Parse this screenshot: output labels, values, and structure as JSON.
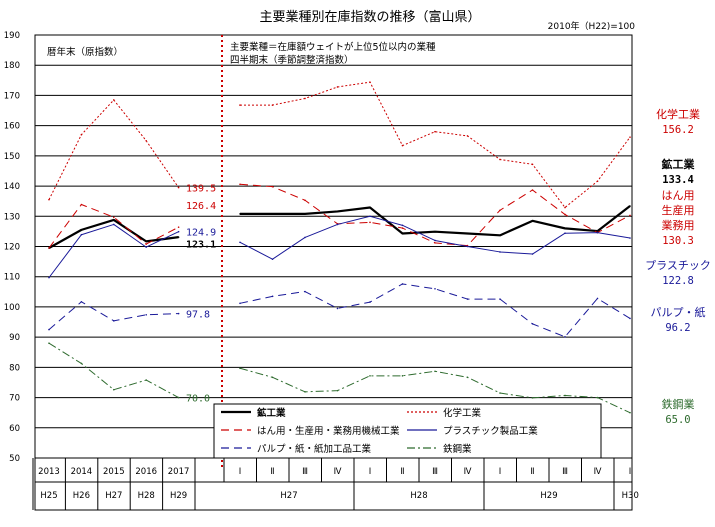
{
  "chart_data": {
    "type": "line",
    "title": "主要業種別在庫指数の推移（富山県）",
    "base_note": "2010年（H22)=100",
    "note_left": "暦年末（原指数）",
    "note_right_1": "主要業種＝在庫額ウェイトが上位5位以内の業種",
    "note_right_2": "四半期末（季節調整済指数）",
    "ylim": [
      50,
      190
    ],
    "yticks": [
      50,
      60,
      70,
      80,
      90,
      100,
      110,
      120,
      130,
      140,
      150,
      160,
      170,
      180,
      190
    ],
    "annual_x": [
      "2013",
      "2014",
      "2015",
      "2016",
      "2017"
    ],
    "annual_era": [
      "H25",
      "H26",
      "H27",
      "H28",
      "H29"
    ],
    "quarter_x": [
      "Ⅰ",
      "Ⅱ",
      "Ⅲ",
      "Ⅳ",
      "Ⅰ",
      "Ⅱ",
      "Ⅲ",
      "Ⅳ",
      "Ⅰ",
      "Ⅱ",
      "Ⅲ",
      "Ⅳ",
      "Ⅰ"
    ],
    "quarter_era": [
      {
        "label": "H27",
        "from": 0,
        "to": 3
      },
      {
        "label": "H28",
        "from": 4,
        "to": 7
      },
      {
        "label": "H29",
        "from": 8,
        "to": 11
      },
      {
        "label": "H30",
        "from": 12,
        "to": 12
      }
    ],
    "series": [
      {
        "name": "鉱工業",
        "color": "#000000",
        "width": 2.2,
        "dash": "",
        "annual": [
          119.5,
          125.5,
          128.8,
          121.7,
          123.1
        ],
        "quarterly": [
          130.8,
          130.8,
          130.8,
          131.6,
          132.9,
          124.3,
          124.9,
          124.3,
          123.7,
          128.5,
          126.0,
          125.1,
          133.4
        ]
      },
      {
        "name": "化学工業",
        "color": "#cc0000",
        "width": 1,
        "dash": "2,2",
        "annual": [
          135.5,
          157.0,
          168.5,
          155.0,
          139.5
        ],
        "quarterly": [
          166.8,
          166.8,
          169.0,
          172.8,
          174.4,
          153.4,
          158.0,
          156.6,
          148.8,
          147.2,
          132.9,
          141.6,
          156.2
        ]
      },
      {
        "name": "はん用・生産用・業務用機械工業",
        "color": "#cc0000",
        "width": 1,
        "dash": "8,5",
        "annual": [
          119.5,
          133.9,
          129.7,
          120.8,
          126.4
        ],
        "quarterly": [
          140.6,
          139.8,
          135.3,
          127.5,
          128.0,
          126.1,
          121.2,
          120.3,
          132.0,
          138.7,
          130.6,
          124.6,
          130.3
        ]
      },
      {
        "name": "プラスチック製品工業",
        "color": "#1a1a99",
        "width": 1,
        "dash": "",
        "annual": [
          109.7,
          123.9,
          127.3,
          119.8,
          124.9
        ],
        "quarterly": [
          121.4,
          115.8,
          123.0,
          127.3,
          130.0,
          127.0,
          122.0,
          120.0,
          118.2,
          117.5,
          124.4,
          124.6,
          122.8
        ]
      },
      {
        "name": "パルプ・紙・紙加工品工業",
        "color": "#1a1a99",
        "width": 1,
        "dash": "8,5",
        "annual": [
          92.5,
          101.7,
          95.4,
          97.4,
          97.8
        ],
        "quarterly": [
          101.2,
          103.5,
          105.1,
          99.5,
          101.6,
          107.6,
          106.0,
          102.6,
          102.6,
          94.4,
          90.1,
          102.8,
          96.2
        ]
      },
      {
        "name": "鉄鋼業",
        "color": "#2e6b2e",
        "width": 1,
        "dash": "8,3,2,3",
        "annual": [
          88.0,
          81.3,
          72.6,
          75.8,
          70.0
        ],
        "quarterly": [
          79.7,
          76.7,
          71.9,
          72.3,
          77.2,
          77.2,
          78.7,
          76.7,
          71.5,
          69.9,
          70.7,
          70.0,
          65.0
        ]
      }
    ],
    "annual_labels": [
      {
        "series": 1,
        "text": "139.5"
      },
      {
        "series": 2,
        "text": "126.4"
      },
      {
        "series": 3,
        "text": "124.9"
      },
      {
        "series": 0,
        "text": "123.1"
      },
      {
        "series": 4,
        "text": "97.8"
      },
      {
        "series": 5,
        "text": "70.0"
      }
    ],
    "right_labels": [
      {
        "series": 1,
        "lines": [
          "化学工業"
        ],
        "value": "156.2"
      },
      {
        "series": 0,
        "lines": [
          "鉱工業"
        ],
        "value": "133.4"
      },
      {
        "series": 2,
        "lines": [
          "はん用",
          "生産用",
          "業務用"
        ],
        "value": "130.3"
      },
      {
        "series": 3,
        "lines": [
          "プラスチック"
        ],
        "value": "122.8"
      },
      {
        "series": 4,
        "lines": [
          "パルプ・紙"
        ],
        "value": "96.2"
      },
      {
        "series": 5,
        "lines": [
          "鉄鋼業"
        ],
        "value": "65.0"
      }
    ],
    "legend": [
      {
        "series": 0,
        "label": "鉱工業"
      },
      {
        "series": 1,
        "label": "化学工業"
      },
      {
        "series": 2,
        "label": "はん用・生産用・業務用機械工業"
      },
      {
        "series": 3,
        "label": "プラスチック製品工業"
      },
      {
        "series": 4,
        "label": "パルプ・紙・紙加工品工業"
      },
      {
        "series": 5,
        "label": "鉄鋼業"
      }
    ],
    "legend_placement": "bottom-right inside plot",
    "grid": true
  }
}
